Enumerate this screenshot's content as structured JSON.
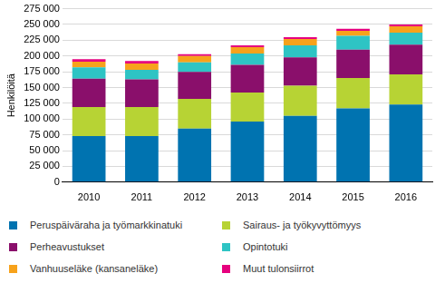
{
  "chart_data": {
    "type": "bar",
    "stacked": true,
    "grid": true,
    "legend": "bottom",
    "y_label": "Henkilöitä",
    "categories": [
      "2010",
      "2011",
      "2012",
      "2013",
      "2014",
      "2015",
      "2016"
    ],
    "series": [
      {
        "name": "Peruspäiväraha ja työmarkkinatuki",
        "color": "#0073b0",
        "values": [
          73000,
          73000,
          85000,
          96000,
          105000,
          117000,
          123000
        ]
      },
      {
        "name": "Sairaus- ja työkyvyttömyys",
        "color": "#b7d334",
        "values": [
          46000,
          46000,
          47000,
          46000,
          48000,
          48000,
          48000
        ]
      },
      {
        "name": "Perheavustukset",
        "color": "#8a0f6b",
        "values": [
          45000,
          44000,
          43000,
          44000,
          45000,
          45000,
          47000
        ]
      },
      {
        "name": "Opintotuki",
        "color": "#2ec4c4",
        "values": [
          18000,
          15000,
          15000,
          18000,
          19000,
          22000,
          19000
        ]
      },
      {
        "name": "Vanhuuseläke (kansaneläke)",
        "color": "#f7a21b",
        "values": [
          9000,
          10000,
          10000,
          10000,
          10000,
          8000,
          10000
        ]
      },
      {
        "name": "Muut tulonsiirrot",
        "color": "#e6007e",
        "values": [
          4000,
          4000,
          3000,
          3000,
          3000,
          3000,
          3000
        ]
      }
    ],
    "ylim": [
      0,
      275000
    ],
    "yticks": [
      0,
      {
        "value": 25000,
        "label": "25 000"
      },
      {
        "value": 50000,
        "label": "50 000"
      },
      {
        "value": 75000,
        "label": "75 000"
      },
      {
        "value": 100000,
        "label": "100 000"
      },
      {
        "value": 125000,
        "label": "125 000"
      },
      {
        "value": 150000,
        "label": "150 000"
      },
      {
        "value": 175000,
        "label": "175 000"
      },
      {
        "value": 200000,
        "label": "200 000"
      },
      {
        "value": 225000,
        "label": "225 000"
      },
      {
        "value": 250000,
        "label": "250 000"
      },
      {
        "value": 275000,
        "label": "275 000"
      }
    ]
  }
}
